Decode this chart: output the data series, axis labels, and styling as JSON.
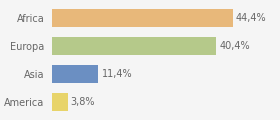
{
  "categories": [
    "Africa",
    "Europa",
    "Asia",
    "America"
  ],
  "values": [
    44.4,
    40.4,
    11.4,
    3.8
  ],
  "labels": [
    "44,4%",
    "40,4%",
    "11,4%",
    "3,8%"
  ],
  "bar_colors": [
    "#e8b87a",
    "#b5c98a",
    "#6b8fc2",
    "#e8d46a"
  ],
  "background_color": "#f5f5f5",
  "xlim": [
    0,
    55
  ],
  "label_color": "#666666",
  "tick_label_fontsize": 7,
  "bar_label_fontsize": 7
}
